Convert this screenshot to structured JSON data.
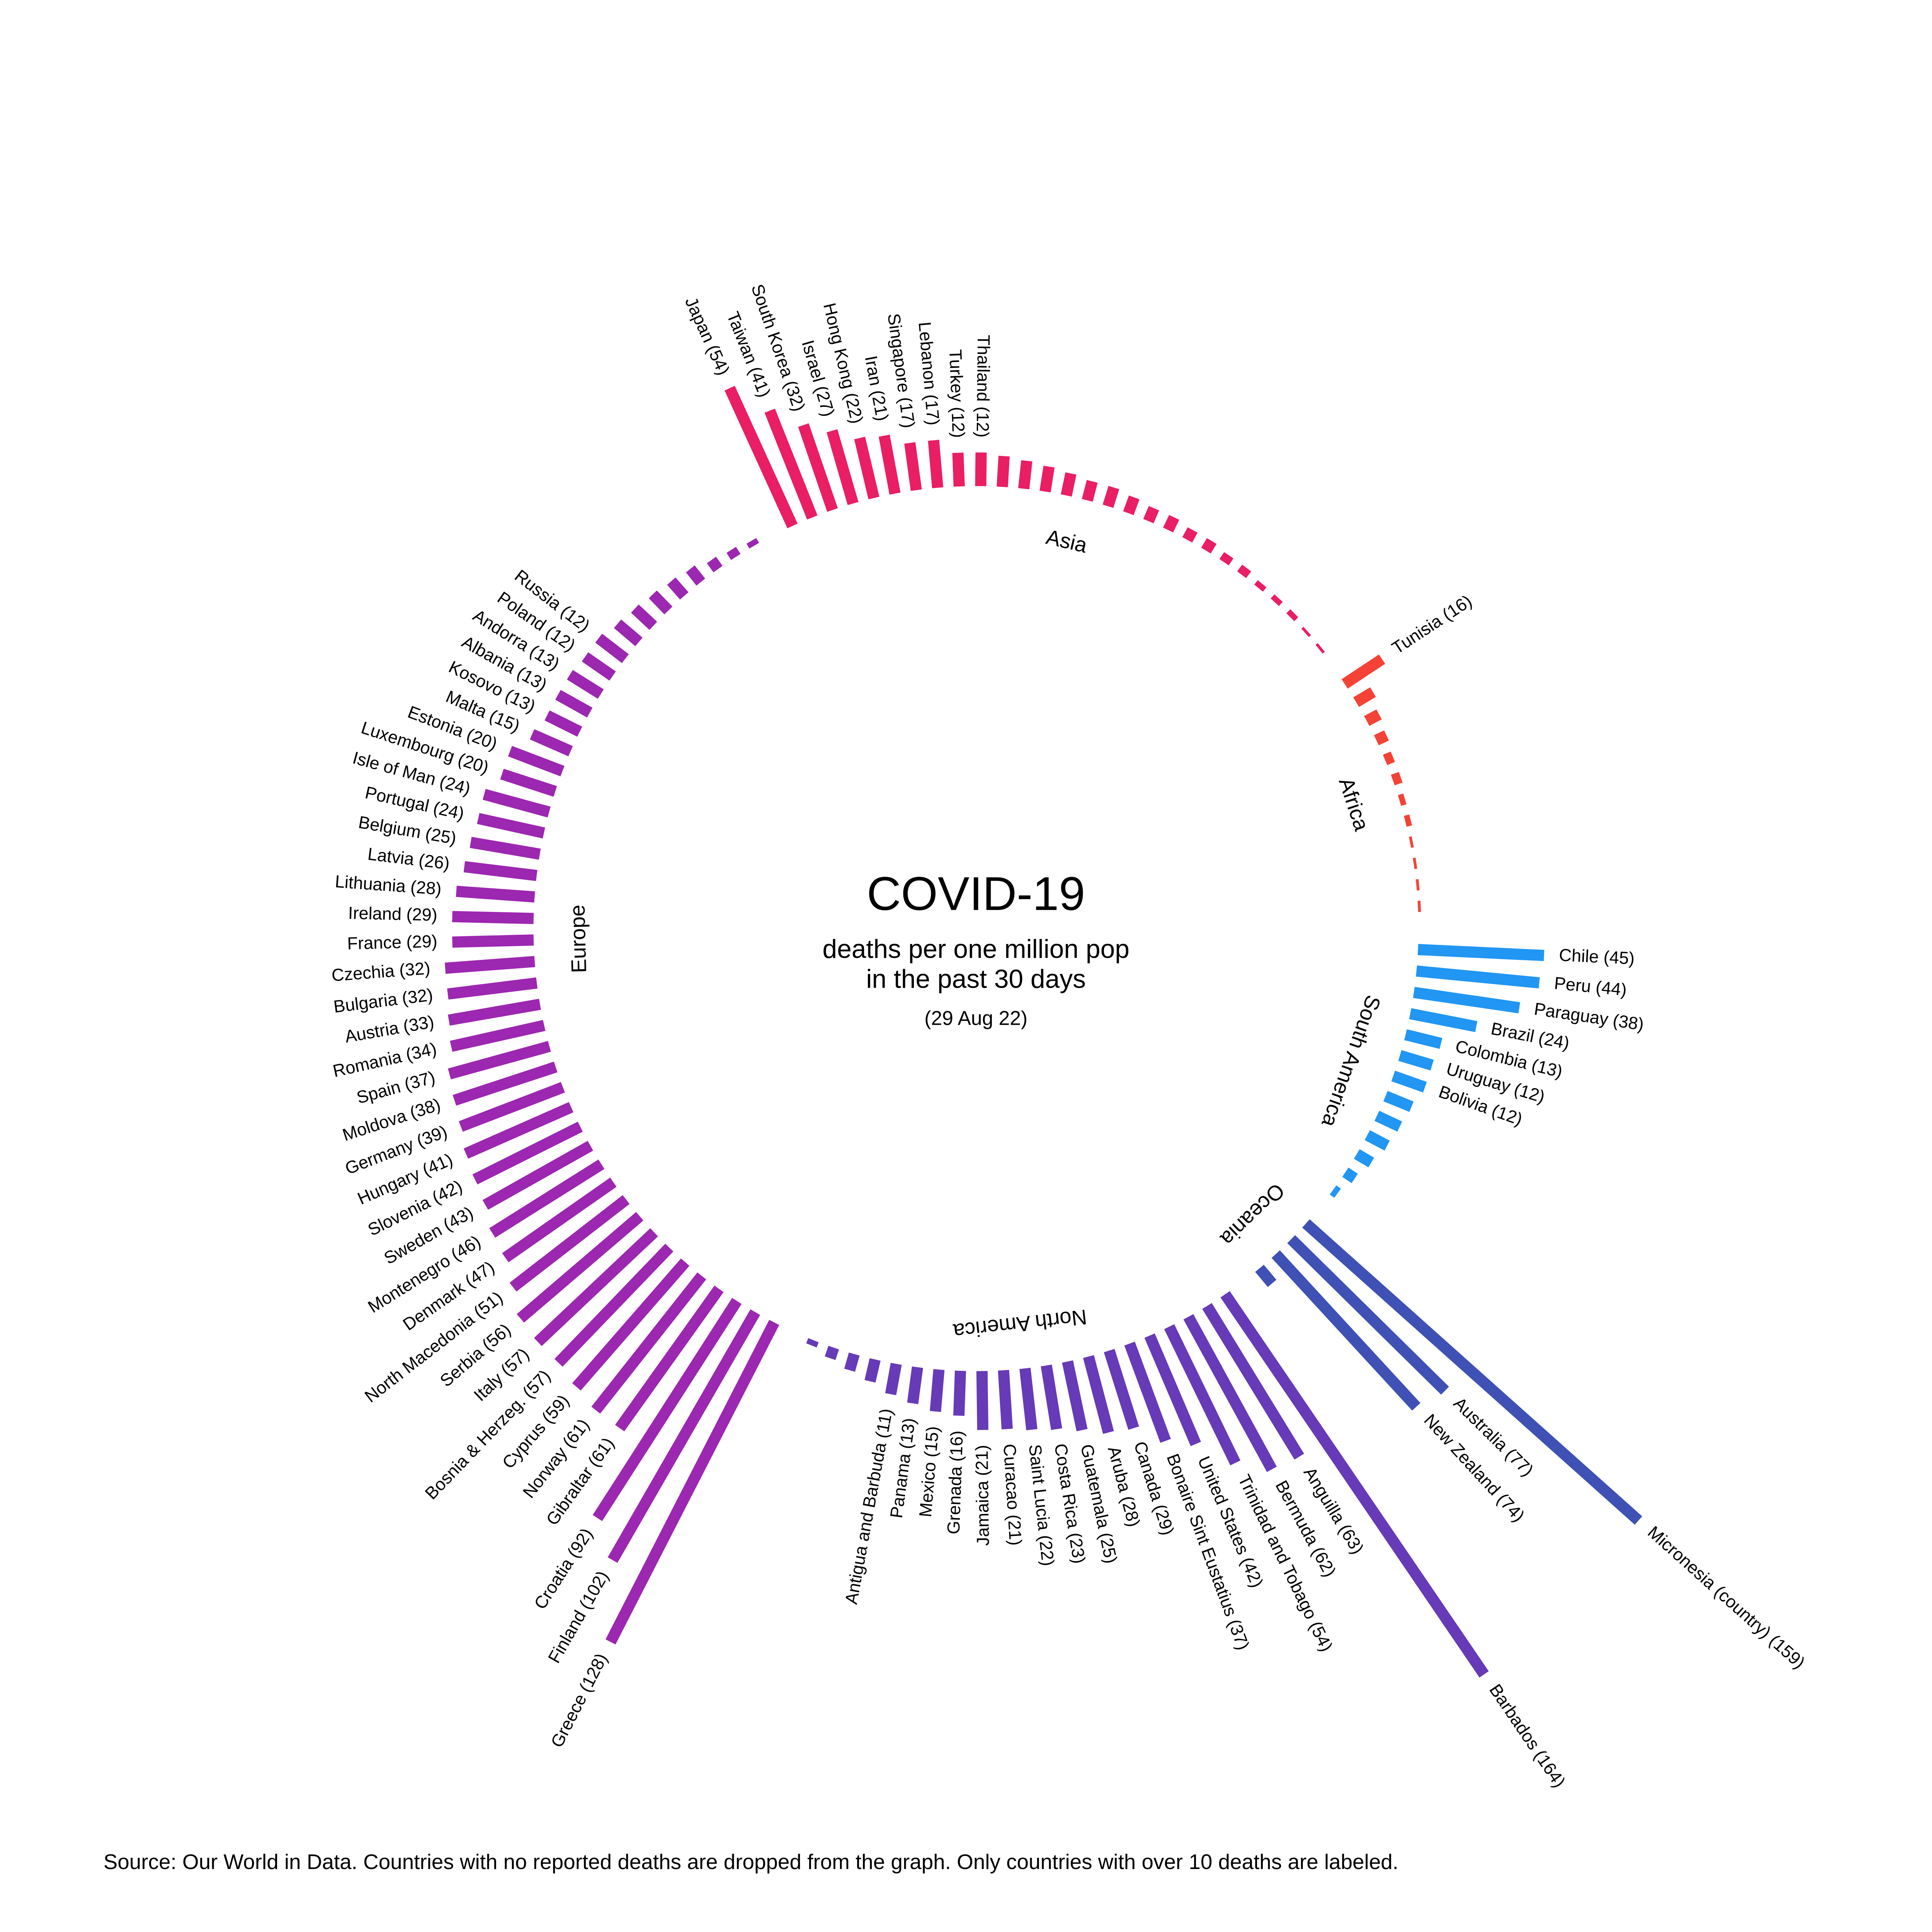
{
  "chart_data": {
    "type": "radial_bar",
    "title": "COVID-19",
    "subtitle": [
      "deaths per one million pop",
      "in the past 30 days"
    ],
    "date_note": "(29 Aug 22)",
    "source": "Source: Our World in Data. Countries with no reported deaths are dropped from the graph. Only countries with over 10 deaths are labeled.",
    "series": [
      {
        "name": "Asia",
        "color": "#e91e63",
        "labels": [
          "Japan (54)",
          "Taiwan (41)",
          "South Korea (32)",
          "Israel (27)",
          "Hong Kong (22)",
          "Iran (21)",
          "Singapore (17)",
          "Lebanon (17)",
          "Turkey (12)",
          "Thailand (12)",
          null,
          null,
          null,
          null,
          null,
          null,
          null,
          null,
          null,
          null,
          null,
          null,
          null,
          null,
          null,
          null,
          null,
          null
        ],
        "values": [
          54,
          41,
          32,
          27,
          22,
          21,
          17,
          17,
          12,
          12,
          11,
          10,
          9,
          8,
          7,
          7,
          6,
          5,
          5,
          4,
          4,
          3,
          3,
          2,
          2,
          2,
          1,
          1
        ]
      },
      {
        "name": "Africa",
        "color": "#f44336",
        "labels": [
          "Tunisia (16)",
          null,
          null,
          null,
          null,
          null,
          null,
          null,
          null,
          null,
          null,
          null
        ],
        "values": [
          16,
          7,
          5,
          4,
          3,
          3,
          2,
          2,
          1,
          1,
          1,
          1
        ]
      },
      {
        "name": "South America",
        "color": "#2196f3",
        "labels": [
          "Chile (45)",
          "Peru (44)",
          "Paraguay (38)",
          "Brazil (24)",
          "Colombia (13)",
          "Uruguay (12)",
          "Bolivia (12)",
          null,
          null,
          null,
          null,
          null,
          null
        ],
        "values": [
          45,
          44,
          38,
          24,
          13,
          12,
          12,
          10,
          9,
          8,
          6,
          4,
          2
        ]
      },
      {
        "name": "Oceania",
        "color": "#3f51b5",
        "labels": [
          "Micronesia (country) (159)",
          "Australia (77)",
          "New Zealand (74)",
          null
        ],
        "values": [
          159,
          77,
          74,
          7
        ]
      },
      {
        "name": "North America",
        "color": "#673ab7",
        "labels": [
          "Barbados (164)",
          "Anguilla (63)",
          "Bermuda (62)",
          "Trinidad and Tobago (54)",
          "United States (42)",
          "Bonaire Sint Eustatius (37)",
          "Canada (29)",
          "Aruba (28)",
          "Guatemala (25)",
          "Costa Rica (23)",
          "Saint Lucia (22)",
          "Curacao (21)",
          "Jamaica (21)",
          "Grenada (16)",
          "Mexico (15)",
          "Panama (13)",
          "Antigua and Barbuda (11)",
          null,
          null,
          null,
          null
        ],
        "values": [
          164,
          63,
          62,
          54,
          42,
          37,
          29,
          28,
          25,
          23,
          22,
          21,
          21,
          16,
          15,
          13,
          11,
          8,
          6,
          4,
          2
        ]
      },
      {
        "name": "Europe",
        "color": "#9c27b0",
        "labels": [
          "Greece (128)",
          "Finland (102)",
          "Croatia (92)",
          "Gibraltar (61)",
          "Norway (61)",
          "Cyprus (59)",
          "Bosnia & Herzeg. (57)",
          "Italy (57)",
          "Serbia (56)",
          "North Macedonia (51)",
          "Denmark (47)",
          "Montenegro (46)",
          "Sweden (43)",
          "Slovenia (42)",
          "Hungary (41)",
          "Germany (39)",
          "Moldova (38)",
          "Spain (37)",
          "Romania (34)",
          "Austria (33)",
          "Bulgaria (32)",
          "Czechia (32)",
          "France (29)",
          "Ireland (29)",
          "Lithuania (28)",
          "Latvia (26)",
          "Belgium (25)",
          "Portugal (24)",
          "Isle of Man (24)",
          "Luxembourg (20)",
          "Estonia (20)",
          "Malta (15)",
          "Kosovo (13)",
          "Albania (13)",
          "Andorra (13)",
          "Poland (12)",
          "Russia (12)",
          null,
          null,
          null,
          null,
          null,
          null,
          null,
          null
        ],
        "values": [
          128,
          102,
          92,
          61,
          61,
          59,
          57,
          57,
          56,
          51,
          47,
          46,
          43,
          42,
          41,
          39,
          38,
          37,
          34,
          33,
          32,
          32,
          29,
          29,
          28,
          26,
          25,
          24,
          24,
          20,
          20,
          15,
          13,
          13,
          13,
          12,
          12,
          10,
          9,
          8,
          7,
          6,
          4,
          3,
          2
        ]
      }
    ]
  }
}
